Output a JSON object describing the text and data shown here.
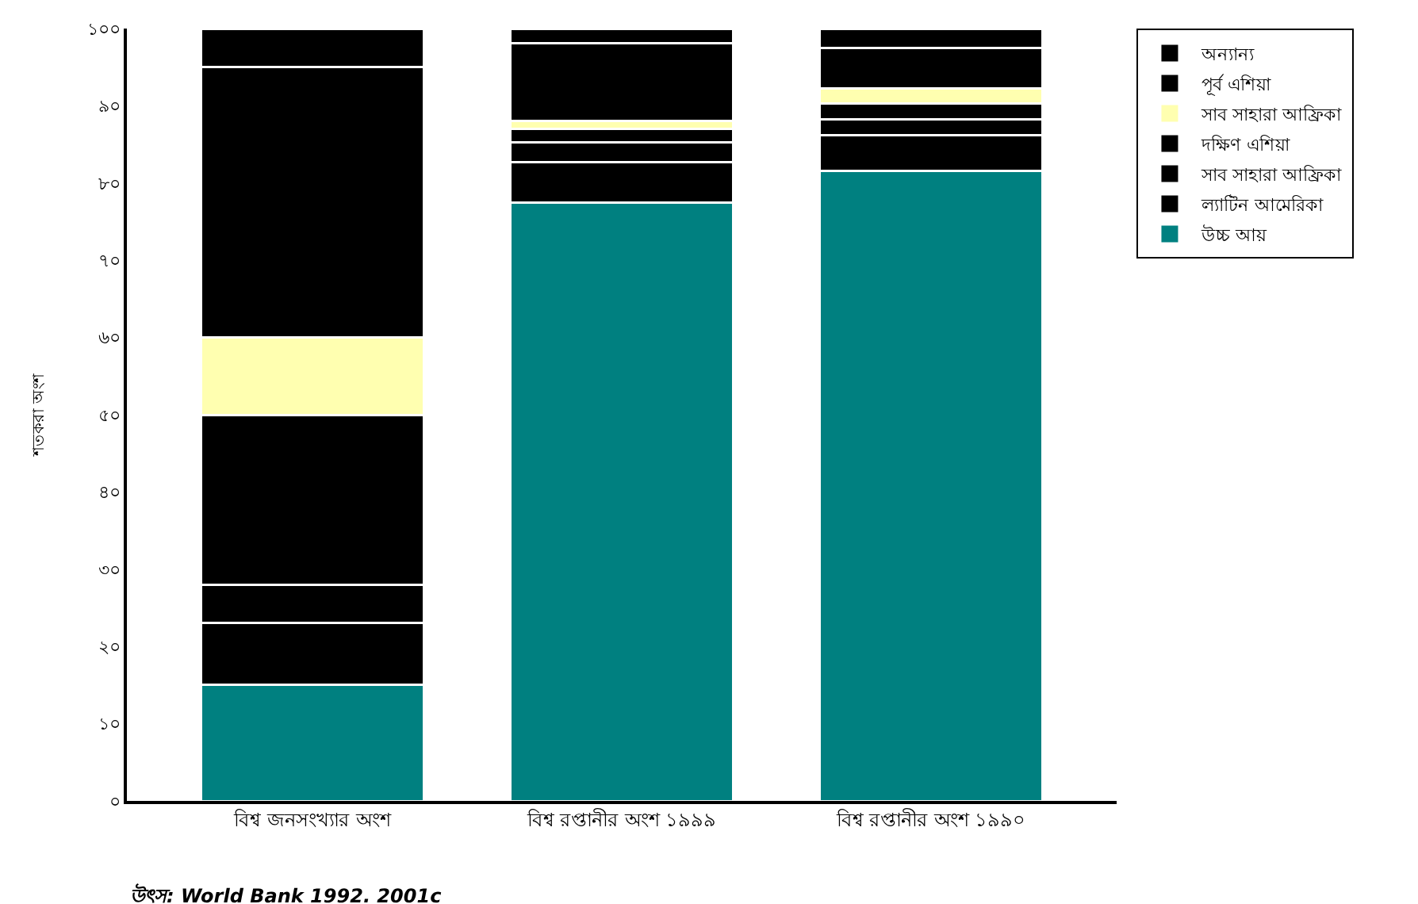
{
  "chart_data": {
    "type": "bar",
    "stacked": true,
    "categories": [
      "বিশ্ব জনসংখ্যার অংশ",
      "বিশ্ব রপ্তানীর অংশ ১৯৯৯",
      "বিশ্ব রপ্তানীর অংশ ১৯৯০"
    ],
    "series": [
      {
        "name": "উচ্চ আয়",
        "color": "#008080",
        "values": [
          15,
          77.5,
          81.6
        ]
      },
      {
        "name": "ল্যাটিন আমেরিকা",
        "color": "#000000",
        "values": [
          8,
          5.2,
          4.6
        ]
      },
      {
        "name": "সাব সাহারা আফ্রিকা",
        "color": "#000000",
        "values": [
          5,
          2.6,
          2
        ]
      },
      {
        "name": "দক্ষিণ এশিয়া",
        "color": "#000000",
        "values": [
          22,
          1.7,
          2.1
        ]
      },
      {
        "name": "সাব সাহারা আফ্রিকা",
        "color": "#ffffb0",
        "values": [
          10,
          1,
          1.9
        ]
      },
      {
        "name": "পূর্ব এশিয়া",
        "color": "#000000",
        "values": [
          35,
          10.1,
          5.3
        ]
      },
      {
        "name": "অন্যান্য",
        "color": "#000000",
        "values": [
          5,
          1.9,
          2.5
        ]
      }
    ],
    "ylabel": "শতকরা অংশ",
    "ylim": [
      0,
      100
    ],
    "yticks": [
      {
        "value": 0,
        "label": "০"
      },
      {
        "value": 10,
        "label": "১০"
      },
      {
        "value": 20,
        "label": "২০"
      },
      {
        "value": 30,
        "label": "৩০"
      },
      {
        "value": 40,
        "label": "৪০"
      },
      {
        "value": 50,
        "label": "৫০"
      },
      {
        "value": 60,
        "label": "৬০"
      },
      {
        "value": 70,
        "label": "৭০"
      },
      {
        "value": 80,
        "label": "৮০"
      },
      {
        "value": 90,
        "label": "৯০"
      },
      {
        "value": 100,
        "label": "১০০"
      }
    ],
    "legend": "right",
    "annotations": [
      "উৎস: World Bank 1992. 2001c"
    ]
  }
}
